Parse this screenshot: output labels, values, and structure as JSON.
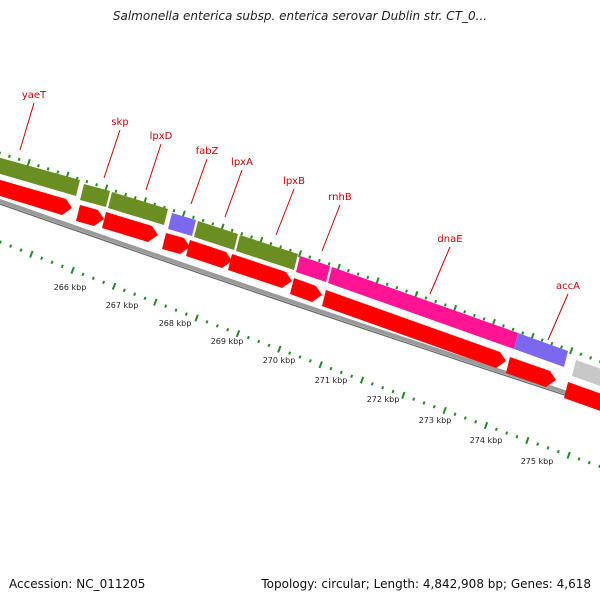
{
  "title": "Salmonella enterica subsp. enterica serovar Dublin str. CT_0...",
  "footer": {
    "accession": "Accession: NC_011205",
    "summary": "Topology: circular; Length: 4,842,908 bp; Genes: 4,618"
  },
  "colors": {
    "cds_red": "#ff0000",
    "olive": "#6b8e23",
    "magenta": "#ff1493",
    "slate": "#7b68ee",
    "grey": "#c8c8c8",
    "label_red": "#cc0000",
    "tick_green": "#228b22",
    "axis_label": "#222222"
  },
  "gene_labels": [
    "yaeT",
    "skp",
    "lpxD",
    "fabZ",
    "lpxA",
    "lpxB",
    "rnhB",
    "dnaE",
    "accA"
  ],
  "kbp_labels": [
    "266 kbp",
    "267 kbp",
    "268 kbp",
    "269 kbp",
    "270 kbp",
    "271 kbp",
    "272 kbp",
    "273 kbp",
    "274 kbp",
    "275 kbp"
  ]
}
